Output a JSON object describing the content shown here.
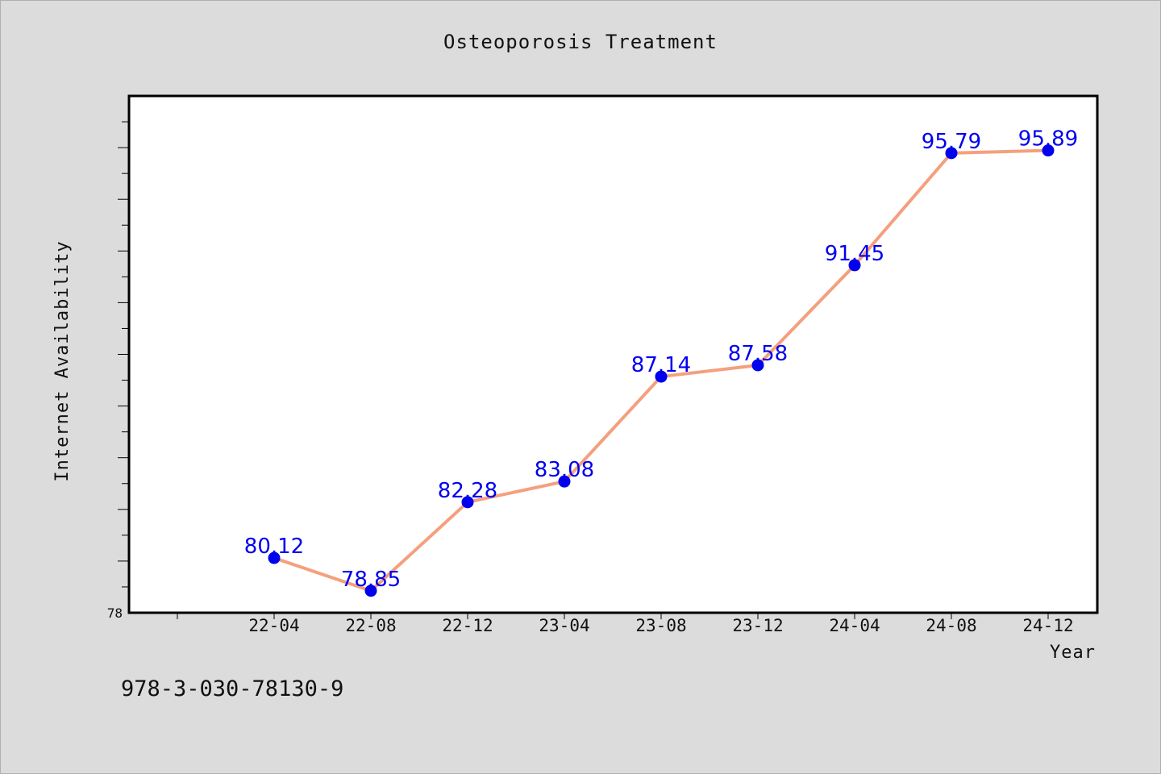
{
  "chart_data": {
    "type": "line",
    "title": "Osteoporosis Treatment",
    "xlabel": "Year",
    "ylabel": "Internet Availability",
    "categories": [
      "22-04",
      "22-08",
      "22-12",
      "23-04",
      "23-08",
      "23-12",
      "24-04",
      "24-08",
      "24-12"
    ],
    "series": [
      {
        "values": [
          80.12,
          78.85,
          82.28,
          83.08,
          87.14,
          87.58,
          91.45,
          95.79,
          95.89
        ],
        "labels": [
          "80.12",
          "78.85",
          "82.28",
          "83.08",
          "87.14",
          "87.58",
          "91.45",
          "95.79",
          "95.89"
        ]
      }
    ],
    "ylim": [
      78,
      98
    ],
    "y_min_label": "78",
    "grid": false,
    "line_color": "#f4a07e",
    "marker_color": "#0000ee",
    "label_color": "#0000ee"
  },
  "footnote": "978-3-030-78130-9"
}
